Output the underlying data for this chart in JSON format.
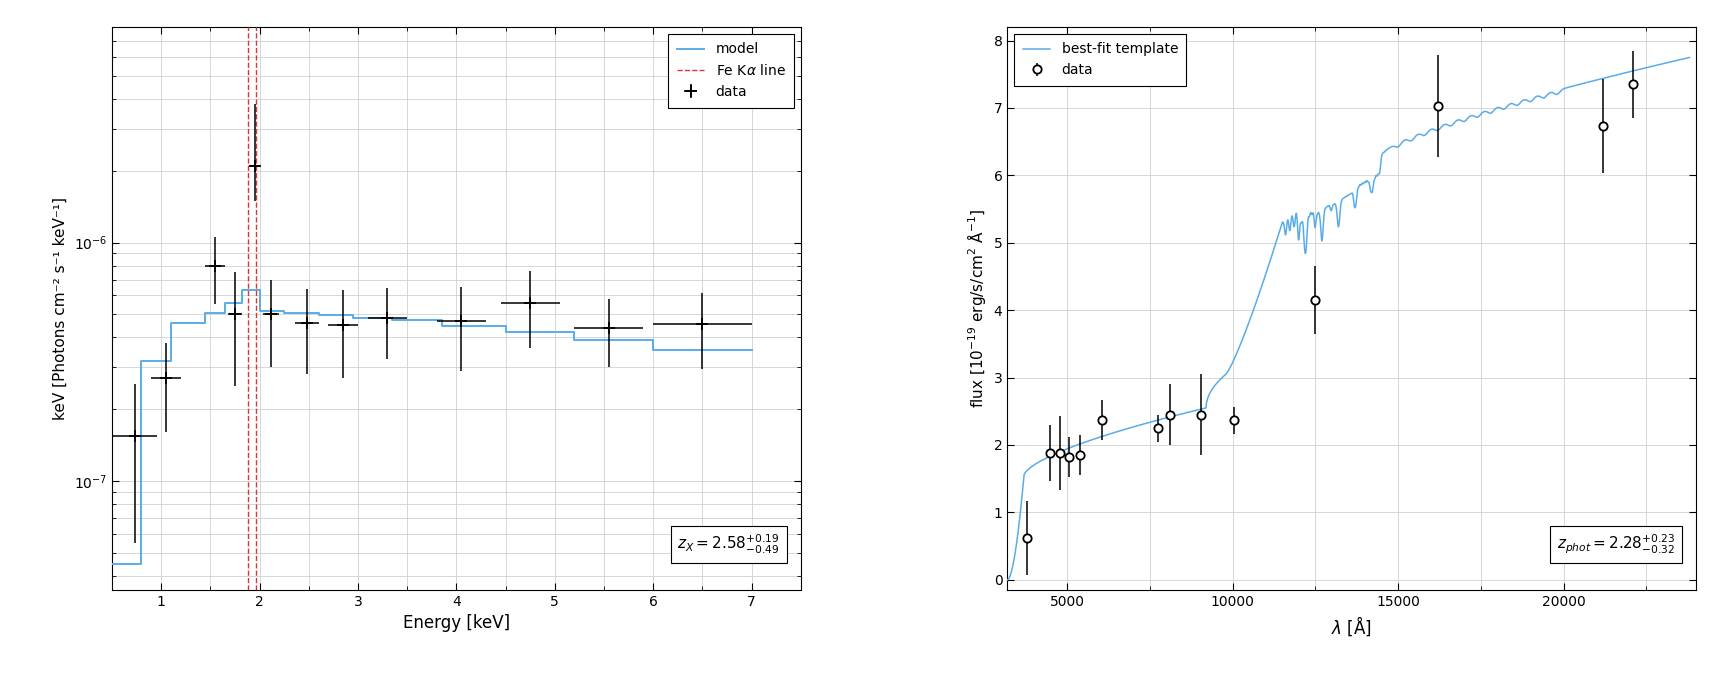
{
  "left": {
    "xlabel": "Energy [keV]",
    "ylabel": "keV [Photons cm⁻² s⁻¹ keV⁻¹]",
    "xlim": [
      0.5,
      7.5
    ],
    "ylim": [
      3.5e-08,
      8e-06
    ],
    "grid_color": "#cccccc",
    "model_color": "#5aace8",
    "fe_line_color": "#dd3333",
    "model_x": [
      0.5,
      0.8,
      0.8,
      1.1,
      1.1,
      1.45,
      1.45,
      1.65,
      1.65,
      1.82,
      1.82,
      2.0,
      2.0,
      2.25,
      2.25,
      2.6,
      2.6,
      2.95,
      2.95,
      3.35,
      3.35,
      3.85,
      3.85,
      4.5,
      4.5,
      5.2,
      5.2,
      6.0,
      6.0,
      7.0
    ],
    "model_y": [
      4.5e-08,
      4.5e-08,
      3.2e-07,
      3.2e-07,
      4.6e-07,
      4.6e-07,
      5.05e-07,
      5.05e-07,
      5.6e-07,
      5.6e-07,
      6.35e-07,
      6.35e-07,
      5.15e-07,
      5.15e-07,
      5.05e-07,
      5.05e-07,
      4.95e-07,
      4.95e-07,
      4.85e-07,
      4.85e-07,
      4.75e-07,
      4.75e-07,
      4.45e-07,
      4.45e-07,
      4.2e-07,
      4.2e-07,
      3.9e-07,
      3.9e-07,
      3.55e-07,
      3.55e-07
    ],
    "fe_line_x": [
      1.88,
      1.96
    ],
    "data_x": [
      0.73,
      1.05,
      1.55,
      1.75,
      1.95,
      2.12,
      2.48,
      2.85,
      3.3,
      4.05,
      4.75,
      5.55,
      6.5
    ],
    "data_xerr": [
      0.23,
      0.15,
      0.1,
      0.07,
      0.05,
      0.08,
      0.12,
      0.15,
      0.2,
      0.25,
      0.3,
      0.35,
      0.5
    ],
    "data_y": [
      1.55e-07,
      2.7e-07,
      8e-07,
      5e-07,
      2.1e-06,
      5e-07,
      4.6e-07,
      4.5e-07,
      4.85e-07,
      4.7e-07,
      5.6e-07,
      4.4e-07,
      4.55e-07
    ],
    "data_yerr_lo": [
      1e-07,
      1.1e-07,
      2.5e-07,
      2.5e-07,
      6e-07,
      2e-07,
      1.8e-07,
      1.8e-07,
      1.6e-07,
      1.8e-07,
      2e-07,
      1.4e-07,
      1.6e-07
    ],
    "data_yerr_hi": [
      1e-07,
      1.1e-07,
      2.5e-07,
      2.5e-07,
      1.7e-06,
      2e-07,
      1.8e-07,
      1.8e-07,
      1.6e-07,
      1.8e-07,
      2e-07,
      1.4e-07,
      1.6e-07
    ],
    "annotation": "$z_X = 2.58^{+0.19}_{-0.49}$"
  },
  "right": {
    "xlabel": "$\\lambda$ [Å]",
    "ylabel": "flux [$10^{-19}$ erg/s/cm$^2$ Å$^{-1}$]",
    "xlim": [
      3200,
      24000
    ],
    "ylim": [
      -0.15,
      8.2
    ],
    "grid_color": "#cccccc",
    "template_color": "#5aace8",
    "data_x": [
      3800,
      4500,
      4800,
      5050,
      5400,
      6050,
      7750,
      8100,
      9050,
      10050,
      12500,
      16200,
      21200,
      22100
    ],
    "data_y": [
      0.62,
      1.88,
      1.88,
      1.82,
      1.85,
      2.37,
      2.25,
      2.45,
      2.45,
      2.37,
      4.15,
      7.03,
      6.73,
      7.35
    ],
    "data_yerr": [
      0.55,
      0.42,
      0.55,
      0.3,
      0.3,
      0.3,
      0.2,
      0.45,
      0.6,
      0.2,
      0.5,
      0.75,
      0.7,
      0.5
    ],
    "annotation": "$z_{phot} = 2.28^{+0.23}_{-0.32}$"
  },
  "figure_bg": "#ffffff",
  "axes_bg": "#ffffff"
}
